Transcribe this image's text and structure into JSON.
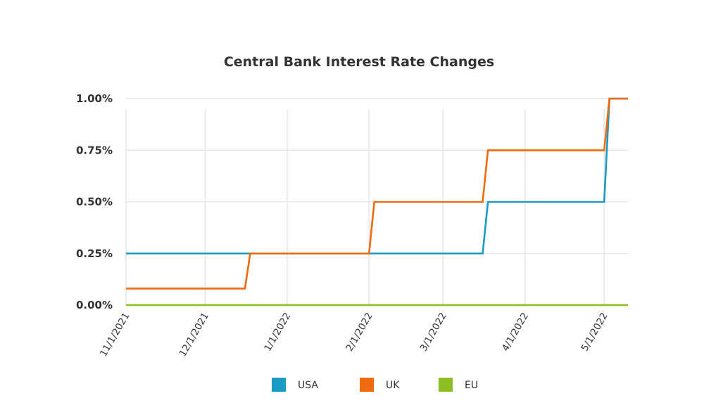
{
  "chart_data": {
    "type": "line",
    "title": "Central Bank Interest Rate Changes",
    "xlabel": "",
    "ylabel": "",
    "x_tick_labels": [
      "11/1/2021",
      "12/1/2021",
      "1/1/2022",
      "2/1/2022",
      "3/1/2022",
      "4/1/2022",
      "5/1/2022"
    ],
    "x_range": [
      "2021-11-01",
      "2022-05-10"
    ],
    "y_tick_labels": [
      "0.00%",
      "0.25%",
      "0.50%",
      "0.75%",
      "1.00%"
    ],
    "ylim": [
      0,
      1.0
    ],
    "grid": true,
    "legend_position": "bottom",
    "series": [
      {
        "name": "USA",
        "color": "#1a9bc4",
        "points": [
          [
            "2021-11-01",
            0.25
          ],
          [
            "2022-03-16",
            0.25
          ],
          [
            "2022-03-18",
            0.5
          ],
          [
            "2022-05-01",
            0.5
          ],
          [
            "2022-05-03",
            1.0
          ],
          [
            "2022-05-10",
            1.0
          ]
        ]
      },
      {
        "name": "UK",
        "color": "#f06a0f",
        "points": [
          [
            "2021-11-01",
            0.08
          ],
          [
            "2021-12-16",
            0.08
          ],
          [
            "2021-12-18",
            0.25
          ],
          [
            "2022-02-01",
            0.25
          ],
          [
            "2022-02-03",
            0.5
          ],
          [
            "2022-03-16",
            0.5
          ],
          [
            "2022-03-18",
            0.75
          ],
          [
            "2022-05-01",
            0.75
          ],
          [
            "2022-05-03",
            1.0
          ],
          [
            "2022-05-10",
            1.0
          ]
        ]
      },
      {
        "name": "EU",
        "color": "#8dbe22",
        "points": [
          [
            "2021-11-01",
            0.0
          ],
          [
            "2022-05-10",
            0.0
          ]
        ]
      }
    ]
  }
}
